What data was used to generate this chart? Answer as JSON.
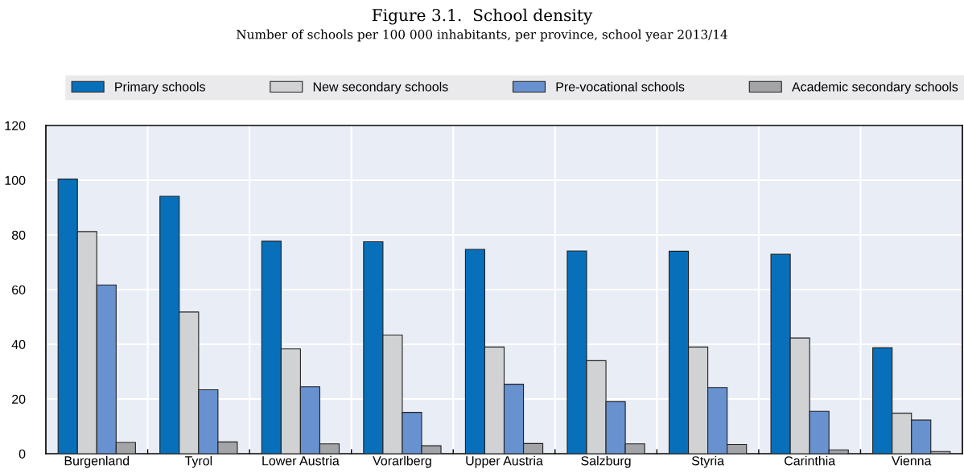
{
  "chart_data": {
    "type": "bar",
    "title": "Figure 3.1.  School density",
    "subtitle": "Number of schools per 100 000 inhabitants, per province, school year 2013/14",
    "categories": [
      "Burgenland",
      "Tyrol",
      "Lower Austria",
      "Vorarlberg",
      "Upper Austria",
      "Salzburg",
      "Styria",
      "Carinthia",
      "Vienna"
    ],
    "series": [
      {
        "name": "Primary schools",
        "color": "#0870bb",
        "values": [
          100.4,
          94.1,
          77.7,
          77.5,
          74.7,
          74.1,
          74.0,
          72.9,
          38.7
        ]
      },
      {
        "name": "New secondary schools",
        "color": "#d1d2d4",
        "values": [
          81.2,
          51.8,
          38.3,
          43.4,
          39.0,
          34.0,
          39.0,
          42.3,
          14.8
        ]
      },
      {
        "name": "Pre-vocational schools",
        "color": "#6891cf",
        "values": [
          61.7,
          23.4,
          24.5,
          15.1,
          25.4,
          19.0,
          24.2,
          15.5,
          12.3
        ]
      },
      {
        "name": "Academic secondary schools",
        "color": "#a3a4a7",
        "values": [
          4.1,
          4.3,
          3.6,
          2.9,
          3.7,
          3.6,
          3.4,
          1.4,
          0.8
        ]
      }
    ],
    "ylim": [
      0,
      120
    ],
    "yticks": [
      0,
      20,
      40,
      60,
      80,
      100,
      120
    ],
    "grid": true,
    "legend": "top"
  }
}
